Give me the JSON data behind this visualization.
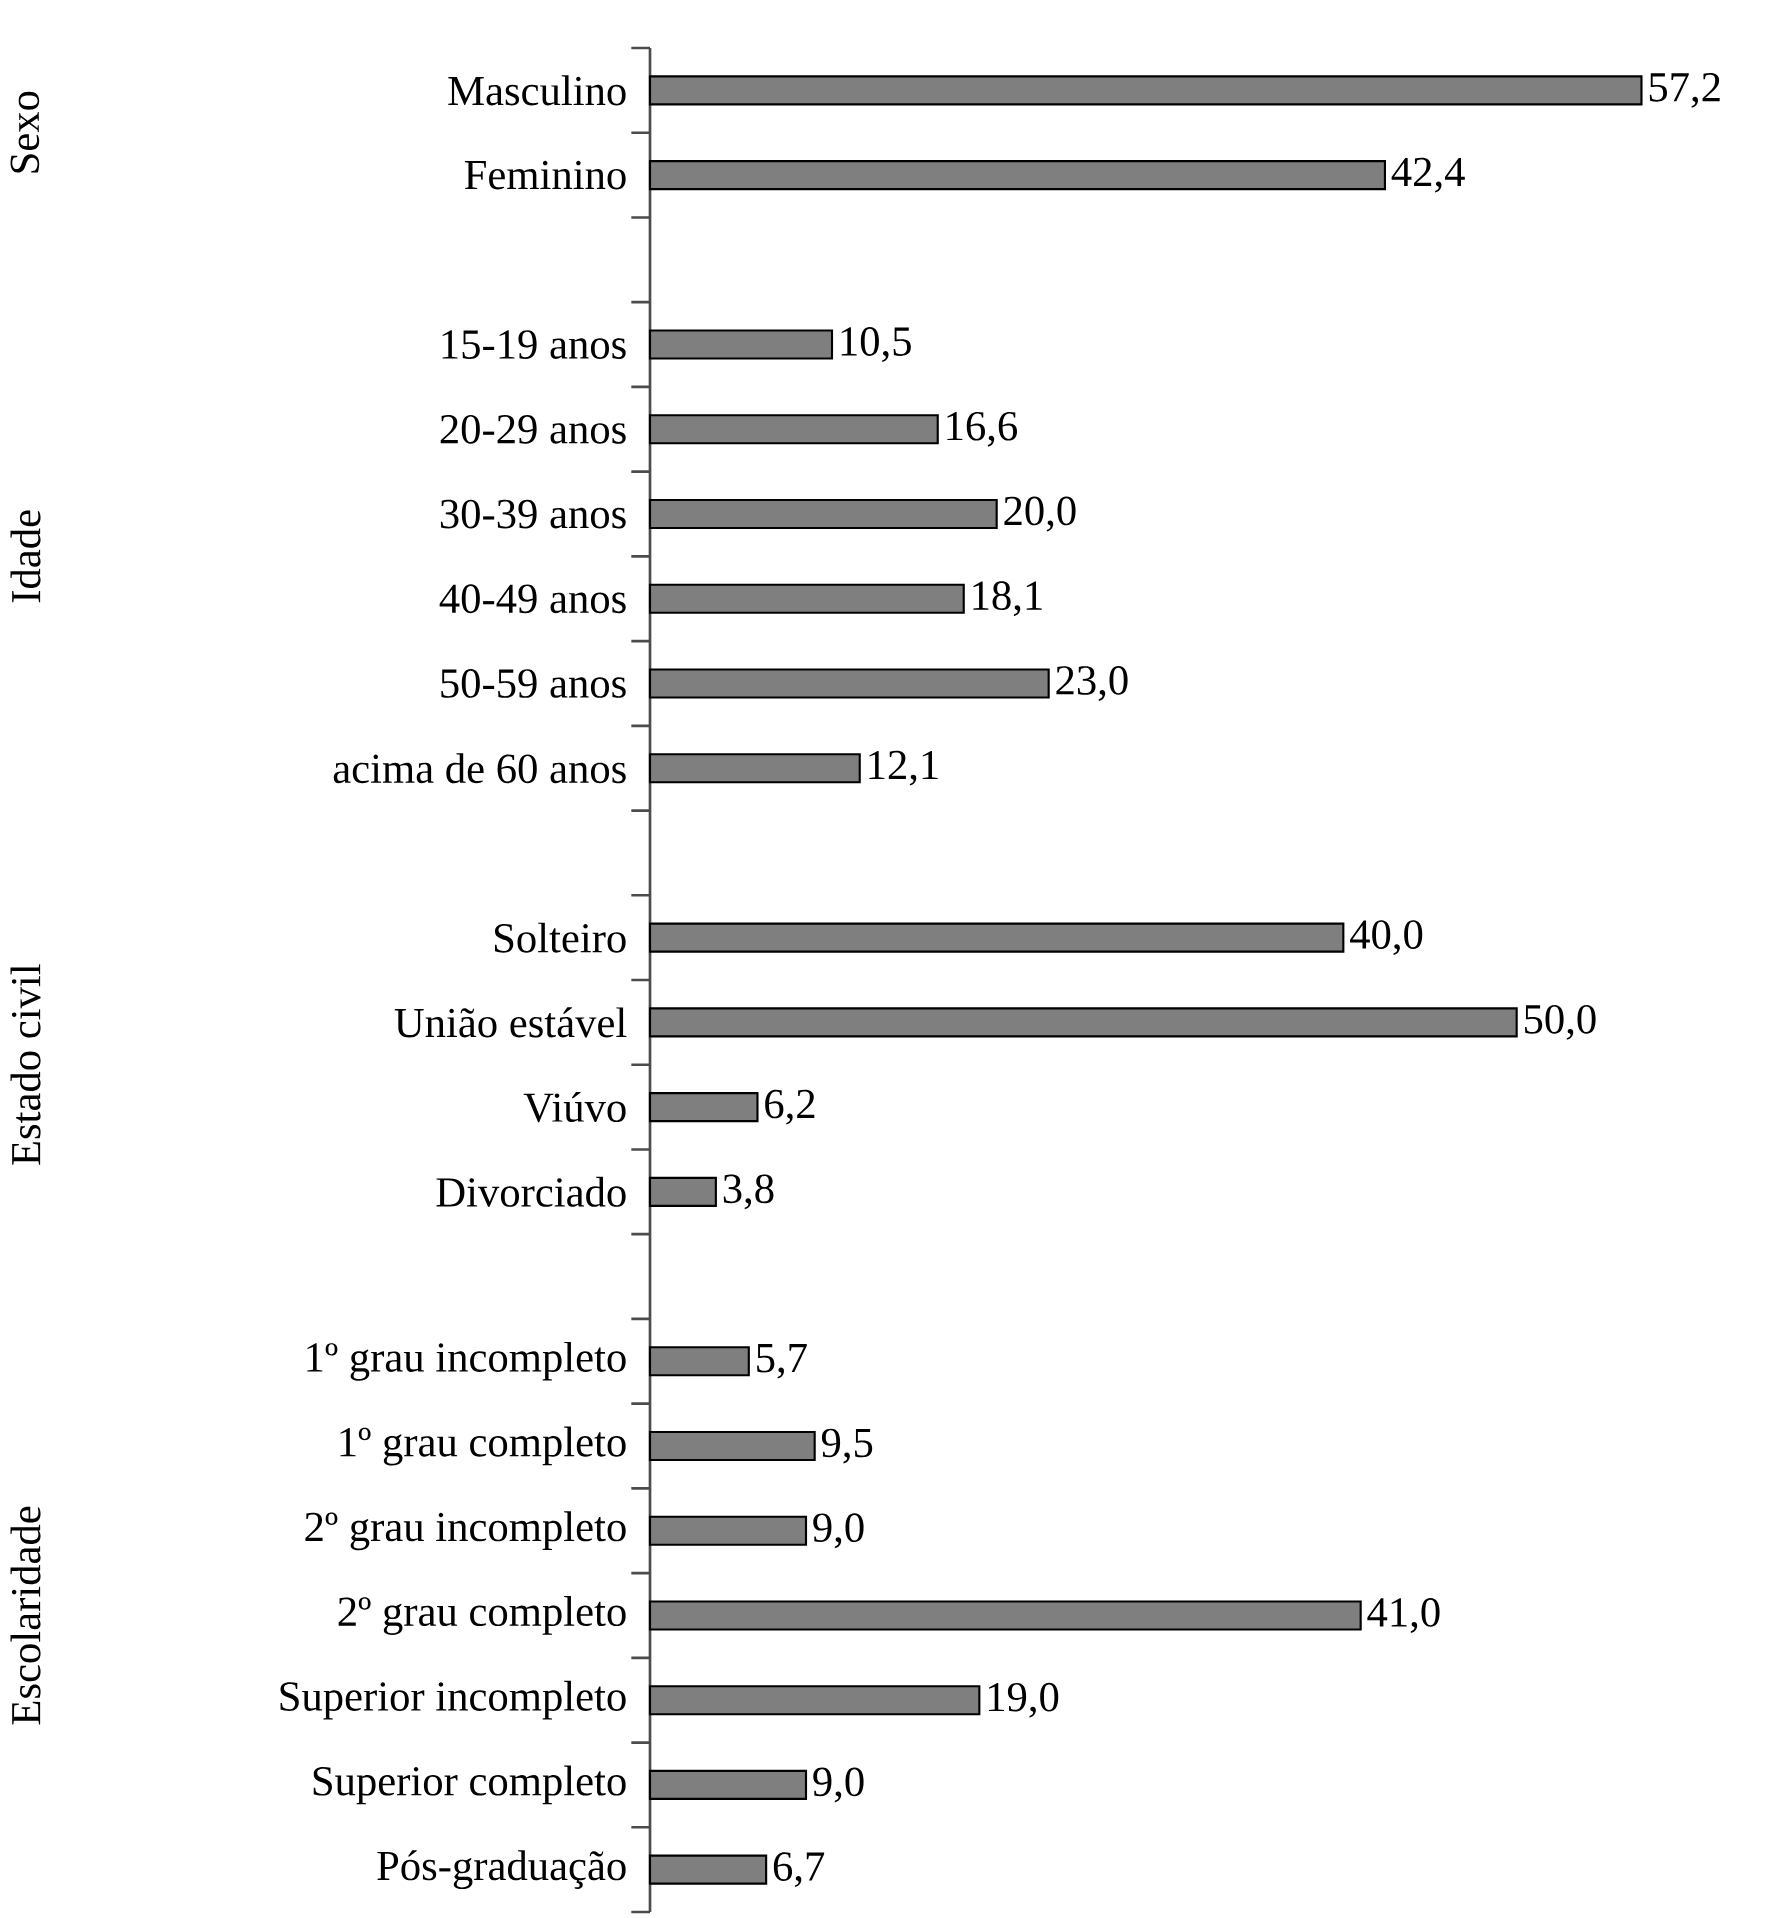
{
  "chart_data": {
    "type": "bar",
    "orientation": "horizontal",
    "categories": [
      "Masculino",
      "Feminino",
      null,
      "15-19 anos",
      "20-29 anos",
      "30-39 anos",
      "40-49 anos",
      "50-59 anos",
      "acima de 60 anos",
      null,
      "Solteiro",
      "União estável",
      "Viúvo",
      "Divorciado",
      null,
      "1º grau incompleto",
      "1º grau completo",
      "2º grau incompleto",
      "2º grau completo",
      "Superior incompleto",
      "Superior completo",
      "Pós-graduação"
    ],
    "values": [
      57.2,
      42.4,
      null,
      10.5,
      16.6,
      20.0,
      18.1,
      23.0,
      12.1,
      null,
      40.0,
      50.0,
      6.2,
      3.8,
      null,
      5.7,
      9.5,
      9.0,
      41.0,
      19.0,
      9.0,
      6.7
    ],
    "value_labels": [
      "57,2",
      "42,4",
      null,
      "10,5",
      "16,6",
      "20,0",
      "18,1",
      "23,0",
      "12,1",
      null,
      "40,0",
      "50,0",
      "6,2",
      "3,8",
      null,
      "5,7",
      "9,5",
      "9,0",
      "41,0",
      "19,0",
      "9,0",
      "6,7"
    ],
    "color": "#7f7f7f",
    "xlim": [
      0,
      57.2
    ],
    "annotations": [
      "Sexo",
      "Idade",
      "Estado civil",
      "Escolaridade"
    ]
  }
}
